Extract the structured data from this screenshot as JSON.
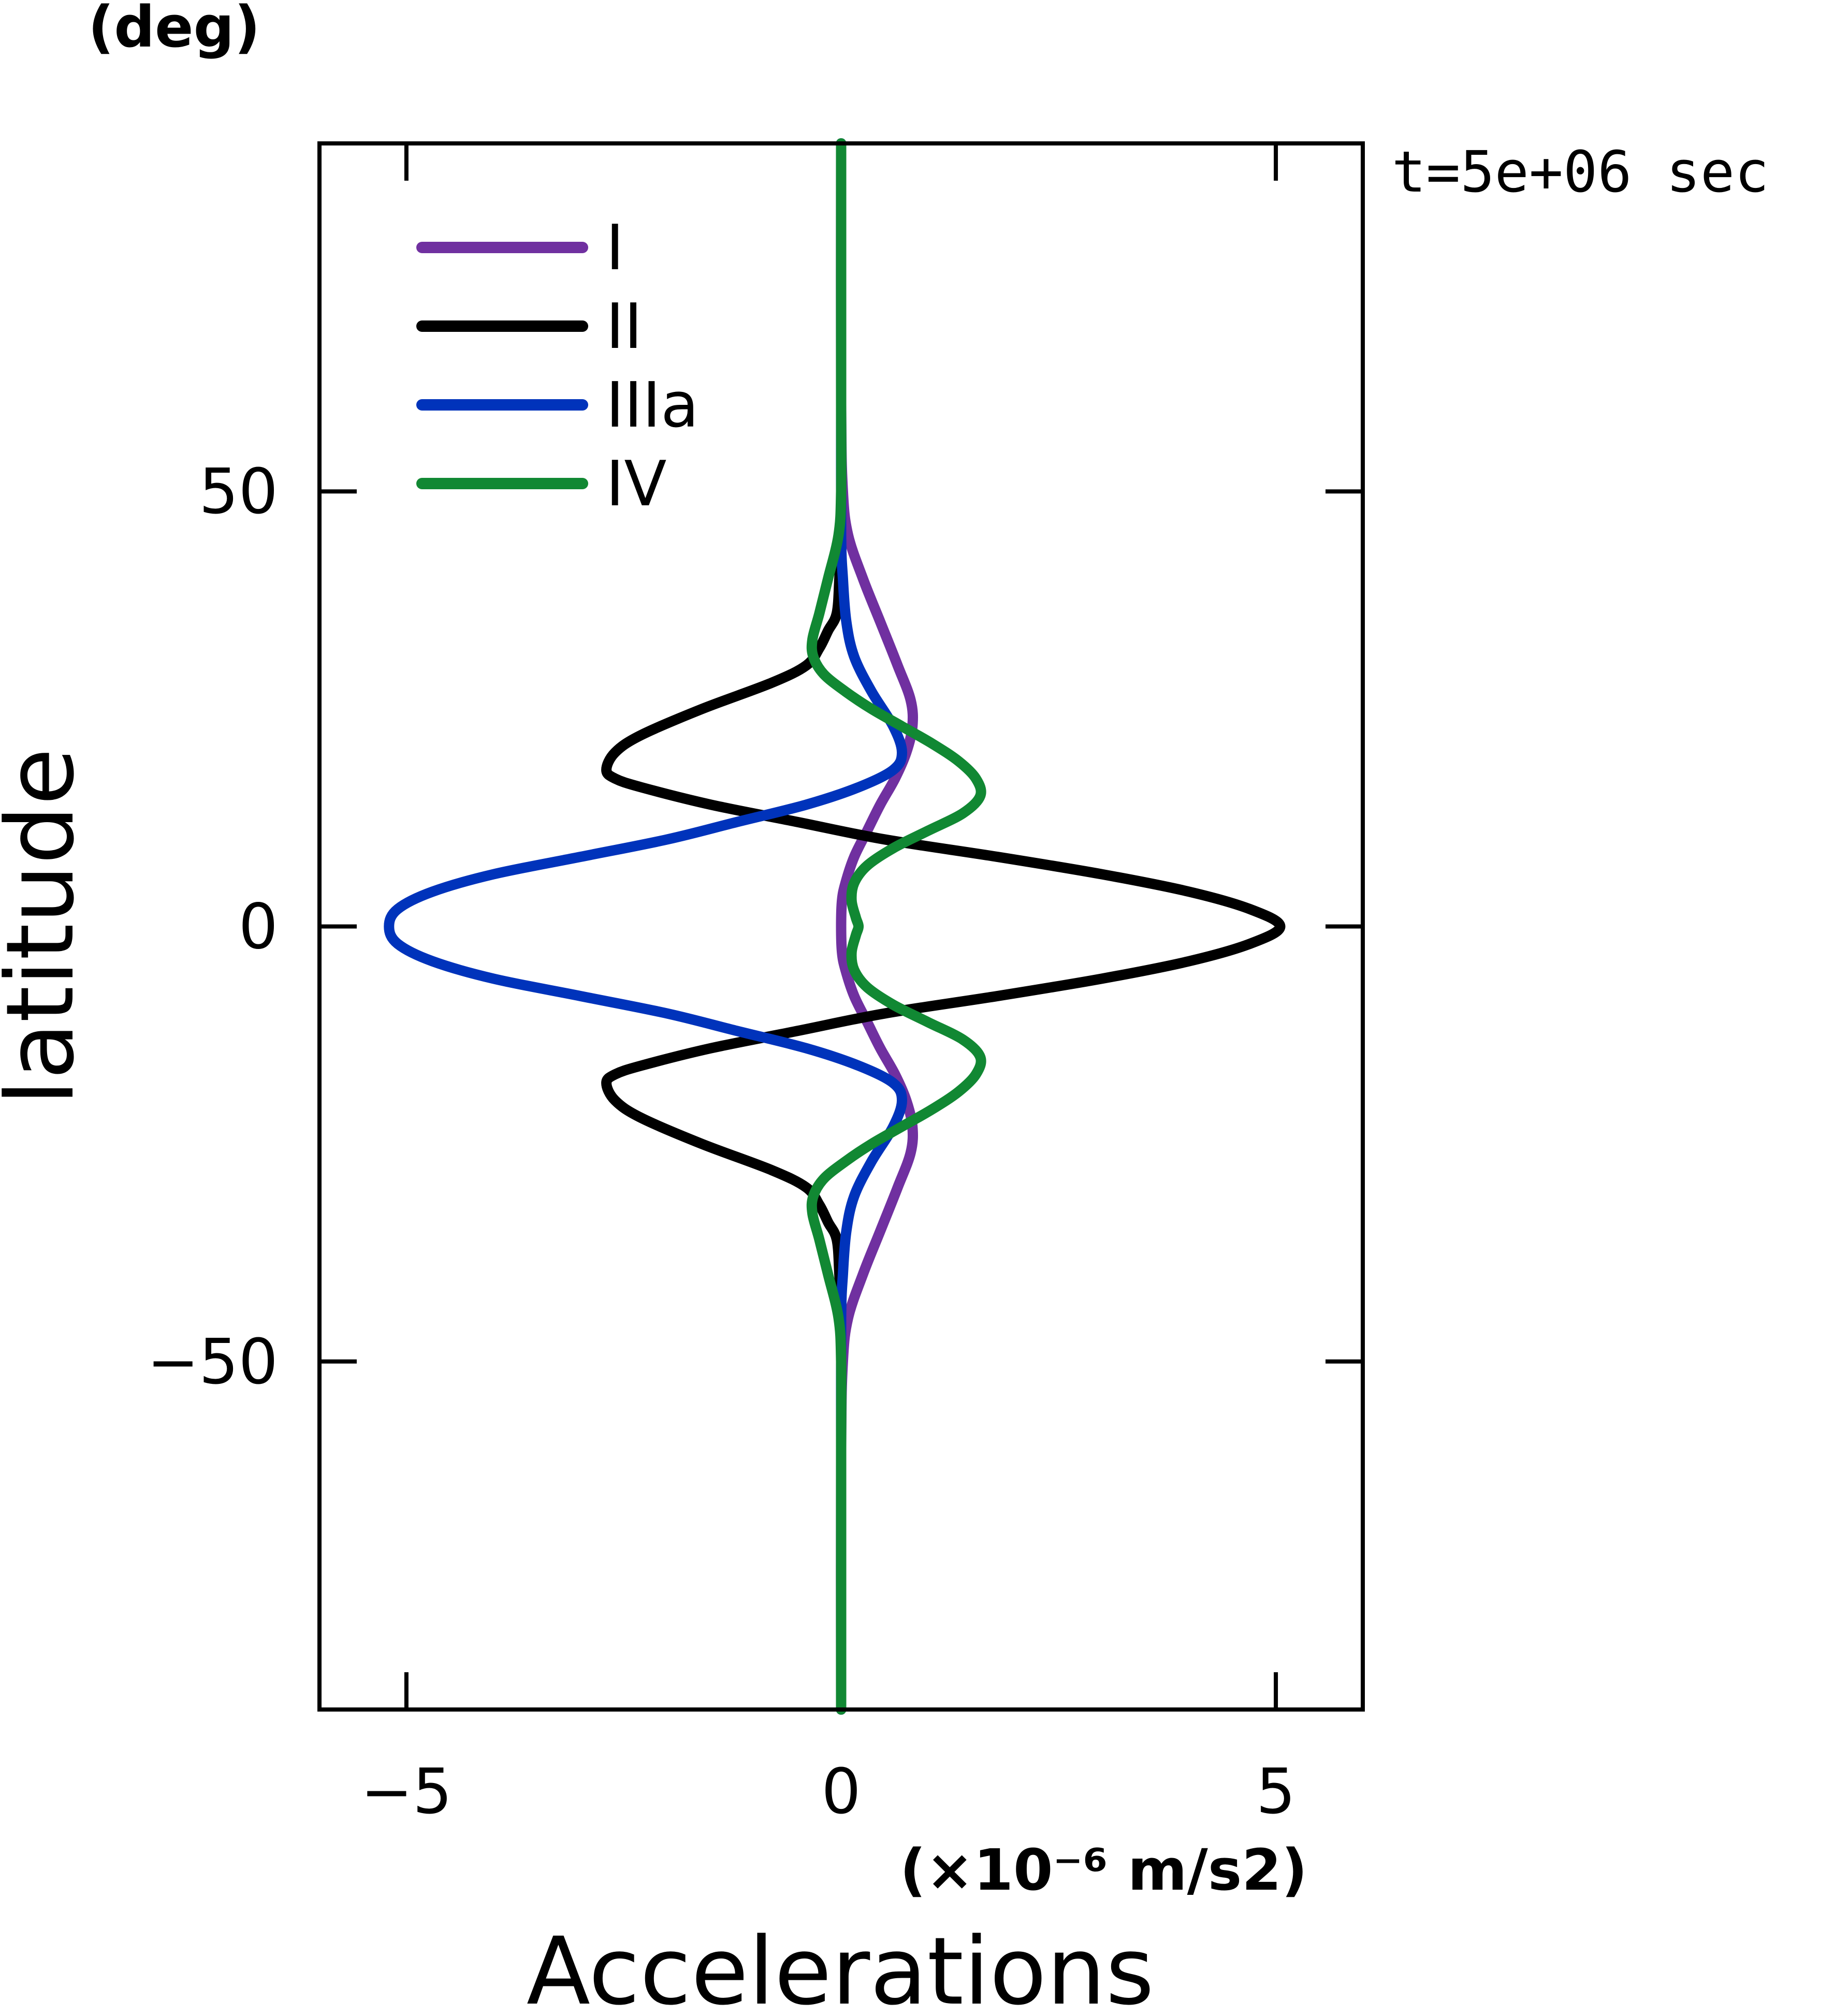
{
  "chart_data": {
    "type": "line",
    "orientation": "vertical",
    "annotation": "t=5e+06 sec",
    "xlabel": "Accelerations",
    "xunit": "(×10⁻⁶ m/s2)",
    "ylabel": "latitude",
    "yunit": "(deg)",
    "xlim": [
      -6,
      6
    ],
    "ylim": [
      -90,
      90
    ],
    "xticks": [
      -5,
      0,
      5
    ],
    "xtick_labels": [
      "−5",
      "0",
      "5"
    ],
    "yticks": [
      -50,
      0,
      50
    ],
    "ytick_labels": [
      "−50",
      "0",
      "50"
    ],
    "grid": false,
    "legend_position": "top-left",
    "series": [
      {
        "name": "I",
        "color": "#7030a0",
        "latitude": [
          90,
          60,
          50,
          45,
          40,
          35,
          30,
          26,
          23,
          20,
          17,
          14,
          11,
          8,
          5,
          3,
          0,
          -3,
          -5,
          -8,
          -11,
          -14,
          -17,
          -20,
          -23,
          -26,
          -30,
          -35,
          -40,
          -45,
          -50,
          -60,
          -90
        ],
        "value": [
          0,
          0,
          0.02,
          0.08,
          0.25,
          0.45,
          0.65,
          0.8,
          0.82,
          0.75,
          0.62,
          0.45,
          0.3,
          0.15,
          0.05,
          0.01,
          0,
          0.01,
          0.05,
          0.15,
          0.3,
          0.45,
          0.62,
          0.75,
          0.82,
          0.8,
          0.65,
          0.45,
          0.25,
          0.08,
          0.02,
          0,
          0
        ]
      },
      {
        "name": "II",
        "color": "#000000",
        "latitude": [
          90,
          60,
          45,
          40,
          36,
          34,
          32,
          30,
          28,
          25,
          22,
          20,
          18,
          17,
          16,
          14,
          12,
          10,
          8,
          6,
          4,
          2,
          0,
          -2,
          -4,
          -6,
          -8,
          -10,
          -12,
          -14,
          -16,
          -17,
          -18,
          -20,
          -22,
          -25,
          -28,
          -30,
          -32,
          -34,
          -36,
          -40,
          -45,
          -60,
          -90
        ],
        "value": [
          0,
          0,
          0,
          -0.02,
          -0.05,
          -0.15,
          -0.25,
          -0.4,
          -0.8,
          -1.6,
          -2.3,
          -2.6,
          -2.7,
          -2.6,
          -2.3,
          -1.5,
          -0.5,
          0.5,
          1.8,
          3.0,
          4.0,
          4.7,
          5.05,
          4.7,
          4.0,
          3.0,
          1.8,
          0.5,
          -0.5,
          -1.5,
          -2.3,
          -2.6,
          -2.7,
          -2.6,
          -2.3,
          -1.6,
          -0.8,
          -0.4,
          -0.25,
          -0.15,
          -0.05,
          -0.02,
          0,
          0,
          0
        ]
      },
      {
        "name": "IIIa",
        "color": "#0033bb",
        "latitude": [
          90,
          60,
          45,
          40,
          35,
          31,
          27,
          23,
          20,
          18,
          16,
          14,
          12,
          10,
          8,
          6,
          4,
          2,
          0,
          -2,
          -4,
          -6,
          -8,
          -10,
          -12,
          -14,
          -16,
          -18,
          -20,
          -23,
          -27,
          -31,
          -35,
          -40,
          -45,
          -60,
          -90
        ],
        "value": [
          0,
          0,
          0,
          0.02,
          0.06,
          0.15,
          0.35,
          0.6,
          0.7,
          0.6,
          0.2,
          -0.4,
          -1.2,
          -2.0,
          -3.0,
          -4.0,
          -4.7,
          -5.1,
          -5.2,
          -5.1,
          -4.7,
          -4.0,
          -3.0,
          -2.0,
          -1.2,
          -0.4,
          0.2,
          0.6,
          0.7,
          0.6,
          0.35,
          0.15,
          0.06,
          0.02,
          0,
          0,
          0
        ]
      },
      {
        "name": "IV",
        "color": "#118833",
        "latitude": [
          90,
          70,
          60,
          50,
          45,
          40,
          36,
          33,
          31,
          29,
          27,
          25,
          23,
          21,
          19,
          17,
          15,
          13,
          11,
          9,
          7,
          5,
          3,
          1,
          0,
          -1,
          -3,
          -5,
          -7,
          -9,
          -11,
          -13,
          -15,
          -17,
          -19,
          -21,
          -23,
          -25,
          -27,
          -29,
          -31,
          -33,
          -36,
          -40,
          -45,
          -50,
          -60,
          -70,
          -90
        ],
        "value": [
          0,
          0,
          0,
          0,
          -0.03,
          -0.15,
          -0.25,
          -0.33,
          -0.32,
          -0.2,
          0.05,
          0.35,
          0.7,
          1.05,
          1.35,
          1.55,
          1.6,
          1.4,
          1.0,
          0.6,
          0.3,
          0.15,
          0.12,
          0.17,
          0.2,
          0.17,
          0.12,
          0.15,
          0.3,
          0.6,
          1.0,
          1.4,
          1.6,
          1.55,
          1.35,
          1.05,
          0.7,
          0.35,
          0.05,
          -0.2,
          -0.32,
          -0.33,
          -0.25,
          -0.15,
          -0.03,
          0,
          0,
          0,
          0
        ]
      }
    ]
  }
}
